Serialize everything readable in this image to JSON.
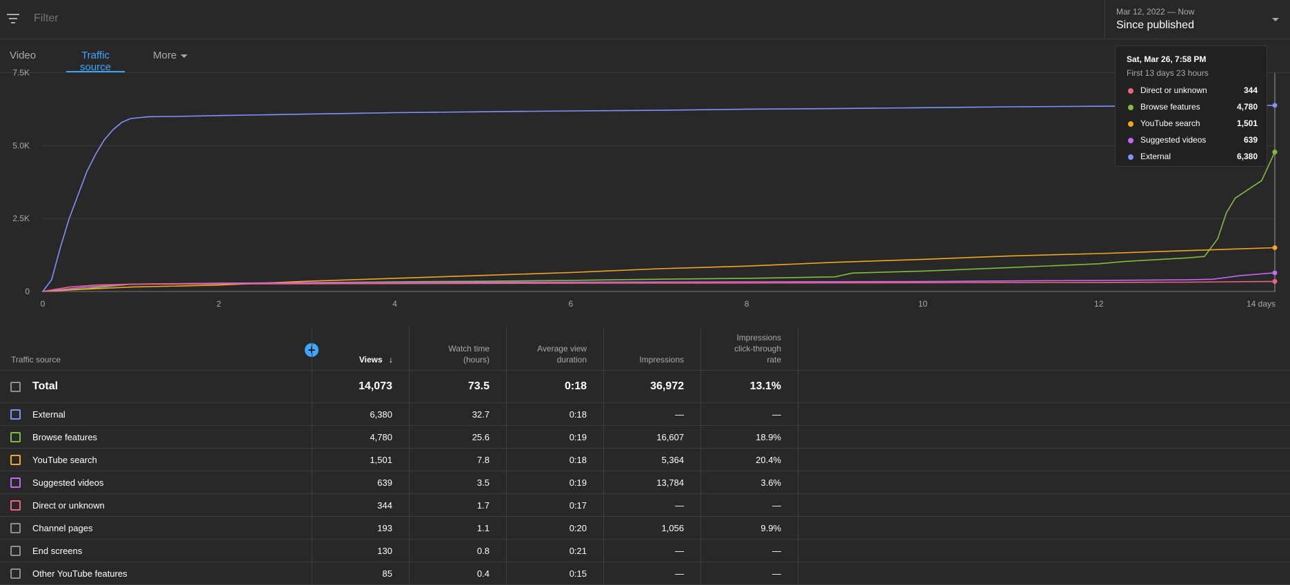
{
  "filter": {
    "placeholder": "Filter"
  },
  "date_picker": {
    "range": "Mar 12, 2022 — Now",
    "label": "Since published"
  },
  "tabs": [
    {
      "label": "Video",
      "active": false
    },
    {
      "label": "Traffic source",
      "active": true
    },
    {
      "label": "More",
      "active": false
    }
  ],
  "icons": {
    "filter": "filter-icon",
    "dropdown": "chevron-down-icon",
    "add_metric": "plus-icon",
    "sort": "arrow-down-icon"
  },
  "colors": {
    "accent": "#3ea6ff",
    "external": "#7d93ff",
    "browse": "#7fbe3f",
    "search": "#f5a623",
    "suggested": "#c36bf2",
    "direct": "#f06383",
    "grey": "#909090"
  },
  "chart_data": {
    "type": "line",
    "x_ticks": [
      "0",
      "2",
      "4",
      "6",
      "8",
      "10",
      "12",
      "14 days"
    ],
    "y_ticks": [
      "0",
      "2.5K",
      "5.0K",
      "7.5K"
    ],
    "xlim": [
      0,
      14
    ],
    "ylim": [
      0,
      7500
    ],
    "grid": true,
    "series": [
      {
        "name": "External",
        "color": "#7d93ff",
        "points": [
          [
            0,
            0
          ],
          [
            0.1,
            400
          ],
          [
            0.2,
            1500
          ],
          [
            0.3,
            2500
          ],
          [
            0.4,
            3300
          ],
          [
            0.5,
            4100
          ],
          [
            0.6,
            4700
          ],
          [
            0.7,
            5200
          ],
          [
            0.8,
            5550
          ],
          [
            0.9,
            5800
          ],
          [
            1.0,
            5930
          ],
          [
            1.2,
            5990
          ],
          [
            1.5,
            6000
          ],
          [
            2,
            6030
          ],
          [
            3,
            6080
          ],
          [
            4,
            6130
          ],
          [
            5,
            6160
          ],
          [
            6,
            6190
          ],
          [
            7,
            6210
          ],
          [
            8,
            6250
          ],
          [
            9,
            6270
          ],
          [
            10,
            6300
          ],
          [
            11,
            6330
          ],
          [
            12,
            6350
          ],
          [
            13,
            6370
          ],
          [
            14,
            6380
          ]
        ]
      },
      {
        "name": "Browse features",
        "color": "#7fbe3f",
        "points": [
          [
            0,
            0
          ],
          [
            0.5,
            100
          ],
          [
            1,
            250
          ],
          [
            2,
            280
          ],
          [
            3,
            300
          ],
          [
            4,
            330
          ],
          [
            5,
            350
          ],
          [
            6,
            380
          ],
          [
            7,
            420
          ],
          [
            8,
            450
          ],
          [
            9,
            500
          ],
          [
            9.2,
            630
          ],
          [
            10,
            700
          ],
          [
            11,
            820
          ],
          [
            12,
            950
          ],
          [
            12.3,
            1030
          ],
          [
            13,
            1150
          ],
          [
            13.2,
            1200
          ],
          [
            13.35,
            1800
          ],
          [
            13.45,
            2700
          ],
          [
            13.55,
            3200
          ],
          [
            13.7,
            3500
          ],
          [
            13.85,
            3800
          ],
          [
            14,
            4780
          ]
        ]
      },
      {
        "name": "YouTube search",
        "color": "#f5a623",
        "points": [
          [
            0,
            0
          ],
          [
            0.5,
            80
          ],
          [
            1,
            150
          ],
          [
            2,
            220
          ],
          [
            3,
            350
          ],
          [
            4,
            450
          ],
          [
            5,
            550
          ],
          [
            6,
            650
          ],
          [
            7,
            780
          ],
          [
            8,
            870
          ],
          [
            9,
            1000
          ],
          [
            10,
            1100
          ],
          [
            11,
            1220
          ],
          [
            12,
            1300
          ],
          [
            13,
            1400
          ],
          [
            14,
            1501
          ]
        ]
      },
      {
        "name": "Suggested videos",
        "color": "#c36bf2",
        "points": [
          [
            0,
            0
          ],
          [
            0.5,
            150
          ],
          [
            1,
            250
          ],
          [
            2,
            280
          ],
          [
            3,
            300
          ],
          [
            4,
            310
          ],
          [
            6,
            320
          ],
          [
            8,
            330
          ],
          [
            10,
            340
          ],
          [
            12,
            380
          ],
          [
            13,
            400
          ],
          [
            13.3,
            420
          ],
          [
            13.6,
            540
          ],
          [
            14,
            639
          ]
        ]
      },
      {
        "name": "Direct or unknown",
        "color": "#f06383",
        "points": [
          [
            0,
            0
          ],
          [
            0.3,
            150
          ],
          [
            0.6,
            220
          ],
          [
            1,
            250
          ],
          [
            2,
            260
          ],
          [
            4,
            270
          ],
          [
            6,
            280
          ],
          [
            8,
            290
          ],
          [
            10,
            300
          ],
          [
            12,
            310
          ],
          [
            13,
            320
          ],
          [
            14,
            344
          ]
        ]
      }
    ]
  },
  "tooltip": {
    "title": "Sat, Mar 26, 7:58 PM",
    "subtitle": "First 13 days 23 hours",
    "rows": [
      {
        "name": "Direct or unknown",
        "value": "344",
        "color": "#f06383"
      },
      {
        "name": "Browse features",
        "value": "4,780",
        "color": "#7fbe3f"
      },
      {
        "name": "YouTube search",
        "value": "1,501",
        "color": "#f5a623"
      },
      {
        "name": "Suggested videos",
        "value": "639",
        "color": "#c36bf2"
      },
      {
        "name": "External",
        "value": "6,380",
        "color": "#7d93ff"
      }
    ]
  },
  "table": {
    "headers": {
      "source": "Traffic source",
      "views": "Views",
      "watch_time": [
        "Watch time",
        "(hours)"
      ],
      "avg_duration": [
        "Average view",
        "duration"
      ],
      "impressions": "Impressions",
      "ctr": [
        "Impressions",
        "click-through",
        "rate"
      ]
    },
    "total": {
      "name": "Total",
      "views": "14,073",
      "watch": "73.5",
      "avg": "0:18",
      "impr": "36,972",
      "ctr": "13.1%"
    },
    "rows": [
      {
        "name": "External",
        "views": "6,380",
        "watch": "32.7",
        "avg": "0:18",
        "impr": "—",
        "ctr": "—",
        "color": "#7d93ff"
      },
      {
        "name": "Browse features",
        "views": "4,780",
        "watch": "25.6",
        "avg": "0:19",
        "impr": "16,607",
        "ctr": "18.9%",
        "color": "#7fbe3f"
      },
      {
        "name": "YouTube search",
        "views": "1,501",
        "watch": "7.8",
        "avg": "0:18",
        "impr": "5,364",
        "ctr": "20.4%",
        "color": "#f5a623"
      },
      {
        "name": "Suggested videos",
        "views": "639",
        "watch": "3.5",
        "avg": "0:19",
        "impr": "13,784",
        "ctr": "3.6%",
        "color": "#c36bf2"
      },
      {
        "name": "Direct or unknown",
        "views": "344",
        "watch": "1.7",
        "avg": "0:17",
        "impr": "—",
        "ctr": "—",
        "color": "#f06383"
      },
      {
        "name": "Channel pages",
        "views": "193",
        "watch": "1.1",
        "avg": "0:20",
        "impr": "1,056",
        "ctr": "9.9%",
        "color": "#909090"
      },
      {
        "name": "End screens",
        "views": "130",
        "watch": "0.8",
        "avg": "0:21",
        "impr": "—",
        "ctr": "—",
        "color": "#909090"
      },
      {
        "name": "Other YouTube features",
        "views": "85",
        "watch": "0.4",
        "avg": "0:15",
        "impr": "—",
        "ctr": "—",
        "color": "#909090"
      }
    ]
  }
}
